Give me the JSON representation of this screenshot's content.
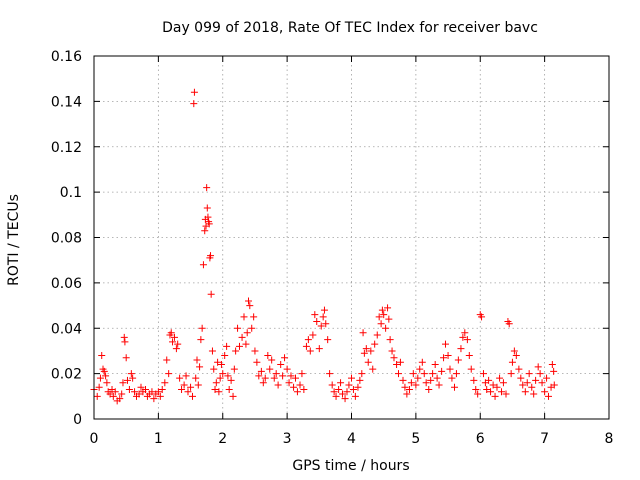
{
  "chart_data": {
    "type": "scatter",
    "title": "Day 099 of 2018, Rate Of TEC Index for receiver bavc",
    "xlabel": "GPS time / hours",
    "ylabel": "ROTI / TECUs",
    "xlim": [
      0,
      8
    ],
    "ylim": [
      0,
      0.16
    ],
    "x_ticks": [
      0,
      1,
      2,
      3,
      4,
      5,
      6,
      7,
      8
    ],
    "x_tick_labels": [
      "0",
      "1",
      "2",
      "3",
      "4",
      "5",
      "6",
      "7",
      "8"
    ],
    "y_ticks": [
      0,
      0.02,
      0.04,
      0.06,
      0.08,
      0.1,
      0.12,
      0.14,
      0.16
    ],
    "y_tick_labels": [
      "0",
      "0.02",
      "0.04",
      "0.06",
      "0.08",
      "0.1",
      "0.12",
      "0.14",
      "0.16"
    ],
    "grid": true,
    "marker": "+",
    "color": "#ff0000",
    "series": [
      {
        "name": "ROTI",
        "points": [
          [
            0.0,
            0.013
          ],
          [
            0.05,
            0.01
          ],
          [
            0.08,
            0.014
          ],
          [
            0.1,
            0.018
          ],
          [
            0.12,
            0.028
          ],
          [
            0.14,
            0.022
          ],
          [
            0.16,
            0.021
          ],
          [
            0.18,
            0.019
          ],
          [
            0.2,
            0.016
          ],
          [
            0.22,
            0.012
          ],
          [
            0.25,
            0.011
          ],
          [
            0.28,
            0.013
          ],
          [
            0.3,
            0.01
          ],
          [
            0.33,
            0.012
          ],
          [
            0.36,
            0.008
          ],
          [
            0.4,
            0.009
          ],
          [
            0.43,
            0.011
          ],
          [
            0.45,
            0.016
          ],
          [
            0.47,
            0.036
          ],
          [
            0.48,
            0.034
          ],
          [
            0.5,
            0.027
          ],
          [
            0.52,
            0.017
          ],
          [
            0.55,
            0.013
          ],
          [
            0.58,
            0.02
          ],
          [
            0.6,
            0.018
          ],
          [
            0.63,
            0.012
          ],
          [
            0.66,
            0.01
          ],
          [
            0.7,
            0.011
          ],
          [
            0.73,
            0.014
          ],
          [
            0.76,
            0.012
          ],
          [
            0.8,
            0.013
          ],
          [
            0.83,
            0.01
          ],
          [
            0.86,
            0.011
          ],
          [
            0.9,
            0.012
          ],
          [
            0.93,
            0.009
          ],
          [
            0.96,
            0.011
          ],
          [
            1.0,
            0.012
          ],
          [
            1.03,
            0.01
          ],
          [
            1.06,
            0.013
          ],
          [
            1.1,
            0.016
          ],
          [
            1.13,
            0.026
          ],
          [
            1.16,
            0.02
          ],
          [
            1.18,
            0.037
          ],
          [
            1.2,
            0.038
          ],
          [
            1.22,
            0.034
          ],
          [
            1.25,
            0.036
          ],
          [
            1.28,
            0.031
          ],
          [
            1.3,
            0.033
          ],
          [
            1.33,
            0.018
          ],
          [
            1.36,
            0.013
          ],
          [
            1.4,
            0.015
          ],
          [
            1.43,
            0.019
          ],
          [
            1.46,
            0.012
          ],
          [
            1.5,
            0.014
          ],
          [
            1.53,
            0.01
          ],
          [
            1.55,
            0.139
          ],
          [
            1.56,
            0.144
          ],
          [
            1.58,
            0.018
          ],
          [
            1.6,
            0.026
          ],
          [
            1.62,
            0.015
          ],
          [
            1.64,
            0.023
          ],
          [
            1.66,
            0.035
          ],
          [
            1.68,
            0.04
          ],
          [
            1.7,
            0.068
          ],
          [
            1.72,
            0.083
          ],
          [
            1.73,
            0.088
          ],
          [
            1.74,
            0.085
          ],
          [
            1.75,
            0.102
          ],
          [
            1.76,
            0.093
          ],
          [
            1.77,
            0.089
          ],
          [
            1.78,
            0.087
          ],
          [
            1.79,
            0.086
          ],
          [
            1.8,
            0.071
          ],
          [
            1.81,
            0.072
          ],
          [
            1.82,
            0.055
          ],
          [
            1.84,
            0.03
          ],
          [
            1.86,
            0.022
          ],
          [
            1.88,
            0.013
          ],
          [
            1.9,
            0.016
          ],
          [
            1.92,
            0.025
          ],
          [
            1.94,
            0.012
          ],
          [
            1.96,
            0.018
          ],
          [
            1.98,
            0.024
          ],
          [
            2.0,
            0.02
          ],
          [
            2.03,
            0.028
          ],
          [
            2.06,
            0.032
          ],
          [
            2.08,
            0.019
          ],
          [
            2.1,
            0.013
          ],
          [
            2.13,
            0.017
          ],
          [
            2.16,
            0.01
          ],
          [
            2.18,
            0.022
          ],
          [
            2.2,
            0.03
          ],
          [
            2.23,
            0.04
          ],
          [
            2.26,
            0.032
          ],
          [
            2.3,
            0.036
          ],
          [
            2.33,
            0.045
          ],
          [
            2.36,
            0.033
          ],
          [
            2.38,
            0.038
          ],
          [
            2.4,
            0.052
          ],
          [
            2.42,
            0.05
          ],
          [
            2.45,
            0.04
          ],
          [
            2.48,
            0.045
          ],
          [
            2.5,
            0.03
          ],
          [
            2.53,
            0.025
          ],
          [
            2.56,
            0.019
          ],
          [
            2.6,
            0.021
          ],
          [
            2.63,
            0.016
          ],
          [
            2.66,
            0.018
          ],
          [
            2.7,
            0.028
          ],
          [
            2.73,
            0.022
          ],
          [
            2.76,
            0.026
          ],
          [
            2.8,
            0.018
          ],
          [
            2.83,
            0.02
          ],
          [
            2.86,
            0.015
          ],
          [
            2.9,
            0.024
          ],
          [
            2.93,
            0.019
          ],
          [
            2.96,
            0.027
          ],
          [
            3.0,
            0.022
          ],
          [
            3.03,
            0.016
          ],
          [
            3.06,
            0.019
          ],
          [
            3.1,
            0.014
          ],
          [
            3.13,
            0.018
          ],
          [
            3.16,
            0.012
          ],
          [
            3.2,
            0.015
          ],
          [
            3.23,
            0.02
          ],
          [
            3.26,
            0.013
          ],
          [
            3.3,
            0.032
          ],
          [
            3.33,
            0.035
          ],
          [
            3.36,
            0.03
          ],
          [
            3.4,
            0.037
          ],
          [
            3.43,
            0.046
          ],
          [
            3.46,
            0.043
          ],
          [
            3.5,
            0.031
          ],
          [
            3.53,
            0.041
          ],
          [
            3.56,
            0.045
          ],
          [
            3.58,
            0.048
          ],
          [
            3.6,
            0.042
          ],
          [
            3.63,
            0.035
          ],
          [
            3.66,
            0.02
          ],
          [
            3.7,
            0.015
          ],
          [
            3.73,
            0.012
          ],
          [
            3.76,
            0.01
          ],
          [
            3.8,
            0.013
          ],
          [
            3.83,
            0.016
          ],
          [
            3.86,
            0.011
          ],
          [
            3.9,
            0.009
          ],
          [
            3.93,
            0.012
          ],
          [
            3.96,
            0.015
          ],
          [
            4.0,
            0.018
          ],
          [
            4.03,
            0.013
          ],
          [
            4.06,
            0.01
          ],
          [
            4.1,
            0.014
          ],
          [
            4.13,
            0.017
          ],
          [
            4.16,
            0.02
          ],
          [
            4.18,
            0.038
          ],
          [
            4.2,
            0.029
          ],
          [
            4.23,
            0.031
          ],
          [
            4.26,
            0.025
          ],
          [
            4.3,
            0.03
          ],
          [
            4.33,
            0.022
          ],
          [
            4.36,
            0.033
          ],
          [
            4.4,
            0.037
          ],
          [
            4.43,
            0.045
          ],
          [
            4.46,
            0.042
          ],
          [
            4.48,
            0.048
          ],
          [
            4.5,
            0.046
          ],
          [
            4.53,
            0.04
          ],
          [
            4.56,
            0.049
          ],
          [
            4.58,
            0.044
          ],
          [
            4.6,
            0.035
          ],
          [
            4.63,
            0.03
          ],
          [
            4.66,
            0.027
          ],
          [
            4.7,
            0.024
          ],
          [
            4.73,
            0.02
          ],
          [
            4.76,
            0.025
          ],
          [
            4.8,
            0.017
          ],
          [
            4.83,
            0.014
          ],
          [
            4.86,
            0.011
          ],
          [
            4.9,
            0.013
          ],
          [
            4.93,
            0.016
          ],
          [
            4.96,
            0.02
          ],
          [
            5.0,
            0.015
          ],
          [
            5.03,
            0.018
          ],
          [
            5.06,
            0.022
          ],
          [
            5.1,
            0.025
          ],
          [
            5.13,
            0.02
          ],
          [
            5.16,
            0.016
          ],
          [
            5.2,
            0.013
          ],
          [
            5.23,
            0.017
          ],
          [
            5.26,
            0.02
          ],
          [
            5.3,
            0.024
          ],
          [
            5.33,
            0.018
          ],
          [
            5.36,
            0.015
          ],
          [
            5.4,
            0.021
          ],
          [
            5.43,
            0.027
          ],
          [
            5.46,
            0.033
          ],
          [
            5.5,
            0.028
          ],
          [
            5.53,
            0.022
          ],
          [
            5.56,
            0.018
          ],
          [
            5.6,
            0.014
          ],
          [
            5.63,
            0.02
          ],
          [
            5.66,
            0.026
          ],
          [
            5.7,
            0.031
          ],
          [
            5.73,
            0.036
          ],
          [
            5.76,
            0.038
          ],
          [
            5.8,
            0.035
          ],
          [
            5.83,
            0.028
          ],
          [
            5.86,
            0.022
          ],
          [
            5.9,
            0.017
          ],
          [
            5.93,
            0.013
          ],
          [
            5.96,
            0.011
          ],
          [
            6.0,
            0.046
          ],
          [
            6.02,
            0.045
          ],
          [
            6.05,
            0.02
          ],
          [
            6.08,
            0.016
          ],
          [
            6.1,
            0.013
          ],
          [
            6.13,
            0.017
          ],
          [
            6.16,
            0.012
          ],
          [
            6.2,
            0.015
          ],
          [
            6.23,
            0.01
          ],
          [
            6.26,
            0.014
          ],
          [
            6.3,
            0.018
          ],
          [
            6.33,
            0.012
          ],
          [
            6.36,
            0.016
          ],
          [
            6.4,
            0.011
          ],
          [
            6.43,
            0.043
          ],
          [
            6.45,
            0.042
          ],
          [
            6.48,
            0.02
          ],
          [
            6.5,
            0.025
          ],
          [
            6.53,
            0.03
          ],
          [
            6.56,
            0.028
          ],
          [
            6.6,
            0.022
          ],
          [
            6.63,
            0.018
          ],
          [
            6.66,
            0.015
          ],
          [
            6.7,
            0.012
          ],
          [
            6.73,
            0.016
          ],
          [
            6.76,
            0.02
          ],
          [
            6.8,
            0.014
          ],
          [
            6.83,
            0.011
          ],
          [
            6.86,
            0.017
          ],
          [
            6.9,
            0.023
          ],
          [
            6.93,
            0.02
          ],
          [
            6.96,
            0.016
          ],
          [
            7.0,
            0.012
          ],
          [
            7.03,
            0.018
          ],
          [
            7.06,
            0.01
          ],
          [
            7.1,
            0.014
          ],
          [
            7.12,
            0.024
          ],
          [
            7.14,
            0.021
          ],
          [
            7.15,
            0.015
          ]
        ]
      }
    ]
  }
}
